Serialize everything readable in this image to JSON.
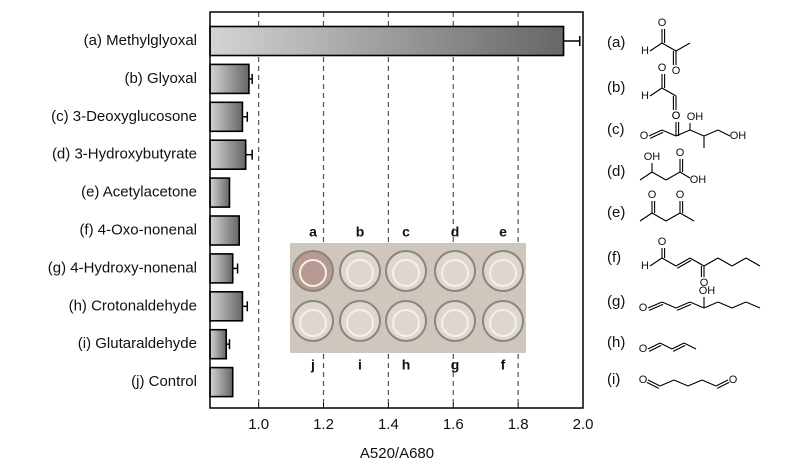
{
  "chart_data": {
    "type": "bar",
    "orientation": "horizontal",
    "x_label": "A520/A680",
    "categories": [
      "(a) Methylglyoxal",
      "(b) Glyoxal",
      "(c) 3-Deoxyglucosone",
      "(d) 3-Hydroxybutyrate",
      "(e) Acetylacetone",
      "(f) 4-Oxo-nonenal",
      "(g) 4-Hydroxy-nonenal",
      "(h) Crotonaldehyde",
      "(i) Glutaraldehyde",
      "(j) Control"
    ],
    "values": [
      1.94,
      0.97,
      0.95,
      0.96,
      0.91,
      0.94,
      0.92,
      0.95,
      0.9,
      0.92
    ],
    "errors": [
      0.05,
      0.01,
      0.015,
      0.02,
      null,
      null,
      0.015,
      0.015,
      0.01,
      null
    ],
    "color": "#777777",
    "xlim": [
      0.85,
      2.0
    ],
    "xticks": [
      {
        "value": 1.0,
        "label": "1.0"
      },
      {
        "value": 1.2,
        "label": "1.2"
      },
      {
        "value": 1.4,
        "label": "1.4"
      },
      {
        "value": 1.6,
        "label": "1.6"
      },
      {
        "value": 1.8,
        "label": "1.8"
      },
      {
        "value": 2.0,
        "label": "2.0"
      }
    ],
    "grid": true,
    "inset": {
      "top_labels": [
        "a",
        "b",
        "c",
        "d",
        "e"
      ],
      "bottom_labels": [
        "j",
        "i",
        "h",
        "g",
        "f"
      ]
    },
    "structures": [
      {
        "label": "(a)",
        "atoms": [
          "H",
          "O",
          "O"
        ]
      },
      {
        "label": "(b)",
        "atoms": [
          "H",
          "O",
          "O"
        ]
      },
      {
        "label": "(c)",
        "atoms": [
          "O",
          "O",
          "OH",
          "OH"
        ]
      },
      {
        "label": "(d)",
        "atoms": [
          "OH",
          "O",
          "OH"
        ]
      },
      {
        "label": "(e)",
        "atoms": [
          "O",
          "O"
        ]
      },
      {
        "label": "(f)",
        "atoms": [
          "H",
          "O",
          "O"
        ]
      },
      {
        "label": "(g)",
        "atoms": [
          "O",
          "OH"
        ]
      },
      {
        "label": "(h)",
        "atoms": [
          "O"
        ]
      },
      {
        "label": "(i)",
        "atoms": [
          "O",
          "O"
        ]
      }
    ]
  }
}
